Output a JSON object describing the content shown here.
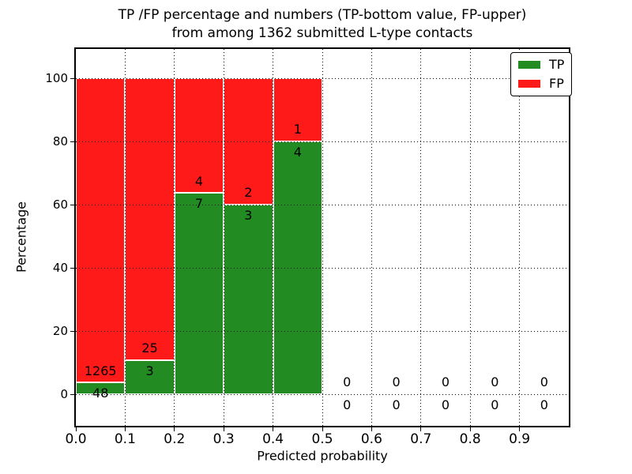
{
  "figure": {
    "background": "#ffffff"
  },
  "title": {
    "line1": "TP /FP percentage and numbers (TP-bottom value, FP-upper)",
    "line2": "from among 1362 submitted L-type contacts"
  },
  "axes": {
    "xlabel": "Predicted probability",
    "ylabel": "Percentage",
    "xtick_labels": [
      "0.0",
      "0.1",
      "0.2",
      "0.3",
      "0.4",
      "0.5",
      "0.6",
      "0.7",
      "0.8",
      "0.9"
    ],
    "ytick_labels": [
      "0",
      "20",
      "40",
      "60",
      "80",
      "100"
    ]
  },
  "legend": {
    "items": [
      {
        "label": "TP",
        "color": "#228B22"
      },
      {
        "label": "FP",
        "color": "#FF1A1A"
      }
    ]
  },
  "chart_data": {
    "type": "bar",
    "stacked": true,
    "title": "TP /FP percentage and numbers (TP-bottom value, FP-upper) from among 1362 submitted L-type contacts",
    "xlabel": "Predicted probability",
    "ylabel": "Percentage",
    "total_submitted_contacts": 1362,
    "xlim": [
      0.0,
      1.0
    ],
    "ylim": [
      -10,
      109.25
    ],
    "xticks": [
      0.0,
      0.1,
      0.2,
      0.3,
      0.4,
      0.5,
      0.6,
      0.7,
      0.8,
      0.9
    ],
    "yticks": [
      0,
      20,
      40,
      60,
      80,
      100
    ],
    "grid": true,
    "grid_style": "dotted",
    "legend_position": "upper right",
    "series": [
      {
        "name": "TP",
        "color": "#228B22"
      },
      {
        "name": "FP",
        "color": "#FF1A1A"
      }
    ],
    "bins": [
      {
        "x_start": 0.0,
        "x_end": 0.1,
        "tp_count": 48,
        "fp_count": 1265,
        "tp_pct": 3.656,
        "fp_pct": 96.344,
        "has_bar": true
      },
      {
        "x_start": 0.1,
        "x_end": 0.2,
        "tp_count": 3,
        "fp_count": 25,
        "tp_pct": 10.714,
        "fp_pct": 89.286,
        "has_bar": true
      },
      {
        "x_start": 0.2,
        "x_end": 0.3,
        "tp_count": 7,
        "fp_count": 4,
        "tp_pct": 63.636,
        "fp_pct": 36.364,
        "has_bar": true
      },
      {
        "x_start": 0.3,
        "x_end": 0.4,
        "tp_count": 3,
        "fp_count": 2,
        "tp_pct": 60.0,
        "fp_pct": 40.0,
        "has_bar": true
      },
      {
        "x_start": 0.4,
        "x_end": 0.5,
        "tp_count": 4,
        "fp_count": 1,
        "tp_pct": 80.0,
        "fp_pct": 20.0,
        "has_bar": true
      },
      {
        "x_start": 0.5,
        "x_end": 0.6,
        "tp_count": 0,
        "fp_count": 0,
        "tp_pct": 0,
        "fp_pct": 0,
        "has_bar": false
      },
      {
        "x_start": 0.6,
        "x_end": 0.7,
        "tp_count": 0,
        "fp_count": 0,
        "tp_pct": 0,
        "fp_pct": 0,
        "has_bar": false
      },
      {
        "x_start": 0.7,
        "x_end": 0.8,
        "tp_count": 0,
        "fp_count": 0,
        "tp_pct": 0,
        "fp_pct": 0,
        "has_bar": false
      },
      {
        "x_start": 0.8,
        "x_end": 0.9,
        "tp_count": 0,
        "fp_count": 0,
        "tp_pct": 0,
        "fp_pct": 0,
        "has_bar": false
      },
      {
        "x_start": 0.9,
        "x_end": 1.0,
        "tp_count": 0,
        "fp_count": 0,
        "tp_pct": 0,
        "fp_pct": 0,
        "has_bar": false
      }
    ],
    "annotation_offsets_pct": {
      "fp_dy": 3.7,
      "tp_dy": -3.4
    }
  }
}
